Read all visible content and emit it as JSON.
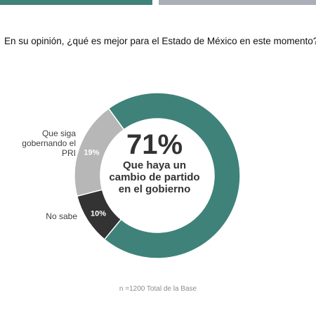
{
  "question": "En su opinión, ¿qué es mejor para el Estado de México en este momento?",
  "footnote": "n =1200 Total de la Base",
  "colors": {
    "accent": "#3e8279",
    "secondary_bar": "#a9aeb7"
  },
  "chart_data": {
    "type": "pie",
    "donut": true,
    "series": [
      {
        "name": "Que haya un cambio de partido en el gobierno",
        "value": 71,
        "label": "71%",
        "color": "#3e8279"
      },
      {
        "name": "No sabe",
        "value": 10,
        "label": "10%",
        "color": "#333333"
      },
      {
        "name": "Que siga gobernando el PRI",
        "value": 19,
        "label": "19%",
        "color": "#b7b7b7"
      }
    ],
    "center_value": "71%",
    "center_text": "Que haya un cambio de partido en el gobierno"
  },
  "labels": {
    "pri": "Que siga gobernando el PRI",
    "no_sabe": "No sabe"
  }
}
